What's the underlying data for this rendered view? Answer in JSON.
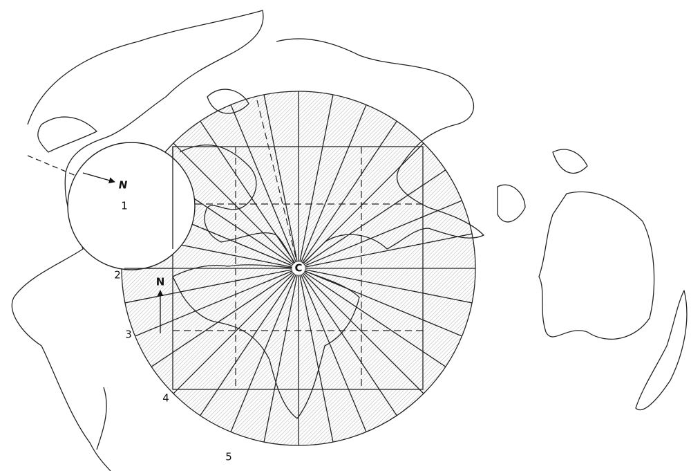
{
  "labels": {
    "center": "C",
    "north_rotated": "N",
    "north_upright": "N",
    "points": [
      "1",
      "2",
      "3",
      "4",
      "5"
    ]
  }
}
